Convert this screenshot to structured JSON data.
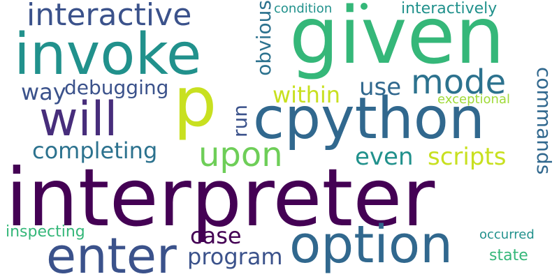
{
  "words": {
    "interpreter": {
      "text": "interpreter",
      "color": "#440154"
    },
    "given": {
      "text": "given",
      "color": "#35b779"
    },
    "cpython": {
      "text": "cpython",
      "color": "#31688e"
    },
    "p": {
      "text": "p",
      "color": "#c8e020"
    },
    "option": {
      "text": "option",
      "color": "#31688e"
    },
    "invoke": {
      "text": "invoke",
      "color": "#21918c"
    },
    "will": {
      "text": "will",
      "color": "#472d7b"
    },
    "enter": {
      "text": "enter",
      "color": "#3b528b"
    },
    "interactive": {
      "text": "interactive",
      "color": "#3b528b"
    },
    "upon": {
      "text": "upon",
      "color": "#6ece58"
    },
    "mode": {
      "text": "mode",
      "color": "#2c728e"
    },
    "scripts": {
      "text": "scripts",
      "color": "#c8e020"
    },
    "commands": {
      "text": "commands",
      "color": "#31688e"
    },
    "obvious": {
      "text": "obvious",
      "color": "#2c728e"
    },
    "run": {
      "text": "run",
      "color": "#3b528b"
    },
    "use": {
      "text": "use",
      "color": "#31688e"
    },
    "within": {
      "text": "within",
      "color": "#c8e020"
    },
    "even": {
      "text": "even",
      "color": "#21918c"
    },
    "completing": {
      "text": "completing",
      "color": "#2c728e"
    },
    "way": {
      "text": "way",
      "color": "#3b528b"
    },
    "debugging": {
      "text": "debugging",
      "color": "#3b528b"
    },
    "program": {
      "text": "program",
      "color": "#3b528b"
    },
    "case": {
      "text": "case",
      "color": "#440154"
    },
    "inspecting": {
      "text": "inspecting",
      "color": "#35b779"
    },
    "interactively": {
      "text": "interactively",
      "color": "#21918c"
    },
    "condition": {
      "text": "condition",
      "color": "#21918c"
    },
    "exceptional": {
      "text": "exceptional",
      "color": "#a0da39"
    },
    "occurred": {
      "text": "occurred",
      "color": "#21918c"
    },
    "state": {
      "text": "state",
      "color": "#35b779"
    }
  }
}
